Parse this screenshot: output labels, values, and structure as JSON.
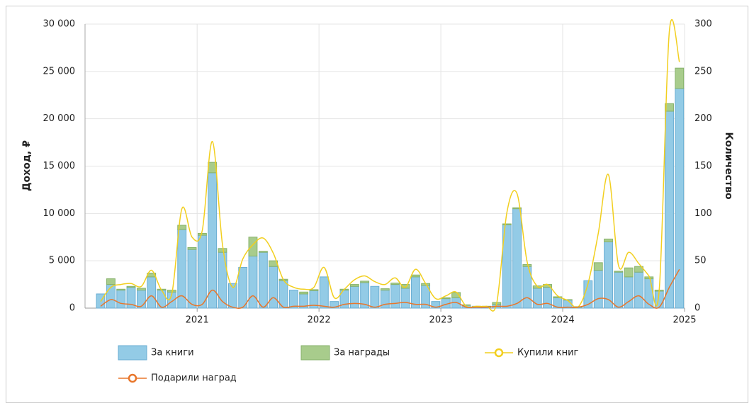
{
  "chart_data": {
    "type": "bar",
    "y_label": "Доход, ₽",
    "y2_label": "Количество",
    "x": [
      2020.208,
      2020.292,
      2020.375,
      2020.458,
      2020.542,
      2020.625,
      2020.708,
      2020.792,
      2020.875,
      2020.958,
      2021.042,
      2021.125,
      2021.208,
      2021.292,
      2021.375,
      2021.458,
      2021.542,
      2021.625,
      2021.708,
      2021.792,
      2021.875,
      2021.958,
      2022.042,
      2022.125,
      2022.208,
      2022.292,
      2022.375,
      2022.458,
      2022.542,
      2022.625,
      2022.708,
      2022.792,
      2022.875,
      2022.958,
      2023.042,
      2023.125,
      2023.208,
      2023.292,
      2023.375,
      2023.458,
      2023.542,
      2023.625,
      2023.708,
      2023.792,
      2023.875,
      2023.958,
      2024.042,
      2024.125,
      2024.208,
      2024.292,
      2024.375,
      2024.458,
      2024.542,
      2024.625,
      2024.708,
      2024.792,
      2024.875,
      2024.958
    ],
    "xlim": [
      2020.08,
      2025
    ],
    "xticks": [
      2021,
      2022,
      2023,
      2024,
      2025
    ],
    "ylim": [
      0,
      30000
    ],
    "yticks": [
      0,
      {
        "value": 5000,
        "label": "5 000"
      },
      {
        "value": 10000,
        "label": "10 000"
      },
      {
        "value": 15000,
        "label": "15 000"
      },
      {
        "value": 20000,
        "label": "20 000"
      },
      {
        "value": 25000,
        "label": "25 000"
      },
      {
        "value": 30000,
        "label": "30 000"
      }
    ],
    "y2lim": [
      0,
      300
    ],
    "y2ticks": [
      0,
      50,
      100,
      150,
      200,
      250,
      300
    ],
    "grid": true,
    "stacked": true,
    "series": [
      {
        "name": "За книги",
        "type": "bar",
        "color": "#93cbe6",
        "stroke": "#6aaed3",
        "values": [
          1500,
          2500,
          1900,
          2200,
          1900,
          3300,
          1900,
          1700,
          8300,
          6200,
          7700,
          14300,
          5900,
          2600,
          4300,
          5500,
          5900,
          4400,
          2900,
          1900,
          1500,
          1850,
          3300,
          700,
          1900,
          2300,
          2700,
          2300,
          1900,
          2500,
          2100,
          3300,
          2400,
          700,
          1000,
          1100,
          300,
          200,
          150,
          400,
          8800,
          10500,
          4400,
          2100,
          2200,
          1100,
          850,
          100,
          2900,
          4000,
          7000,
          3800,
          3300,
          3800,
          3100,
          1800,
          20800,
          23200
        ]
      },
      {
        "name": "За награды",
        "type": "bar",
        "color": "#a8cc8c",
        "stroke": "#86b26a",
        "values": [
          0,
          600,
          100,
          100,
          200,
          400,
          100,
          200,
          450,
          200,
          200,
          1100,
          400,
          0,
          0,
          2000,
          100,
          600,
          150,
          0,
          200,
          100,
          0,
          0,
          100,
          200,
          150,
          0,
          150,
          150,
          400,
          200,
          200,
          0,
          100,
          550,
          50,
          0,
          50,
          200,
          100,
          100,
          200,
          250,
          300,
          100,
          50,
          50,
          0,
          800,
          300,
          100,
          950,
          600,
          200,
          100,
          800,
          2150
        ]
      },
      {
        "name": "Купили книг",
        "type": "line",
        "axis": "y2",
        "color": "#f2cf1f",
        "marker": "#f2cf1f",
        "values": [
          7,
          22,
          25,
          26,
          23,
          40,
          19,
          15,
          105,
          75,
          82,
          176,
          67,
          22,
          52,
          67,
          74,
          58,
          30,
          22,
          20,
          22,
          43,
          11,
          20,
          30,
          34,
          28,
          25,
          32,
          22,
          41,
          26,
          10,
          13,
          17,
          2,
          2,
          2,
          5,
          101,
          121,
          49,
          23,
          25,
          13,
          8,
          1,
          26,
          79,
          141,
          45,
          59,
          47,
          34,
          19,
          292,
          260
        ]
      },
      {
        "name": "Подарили наград",
        "type": "line",
        "axis": "y2",
        "color": "#e8762b",
        "marker": "#e8762b",
        "values": [
          2,
          9,
          5,
          4,
          2,
          13,
          1,
          7,
          13,
          4,
          4,
          19,
          7,
          1,
          1,
          13,
          1,
          11,
          1,
          2,
          2,
          3,
          2,
          1,
          4,
          5,
          4,
          1,
          4,
          5,
          6,
          4,
          4,
          1,
          4,
          6,
          1,
          1,
          1,
          2,
          2,
          5,
          11,
          4,
          5,
          1,
          1,
          1,
          4,
          10,
          9,
          1,
          7,
          13,
          4,
          1,
          22,
          41
        ]
      }
    ]
  }
}
